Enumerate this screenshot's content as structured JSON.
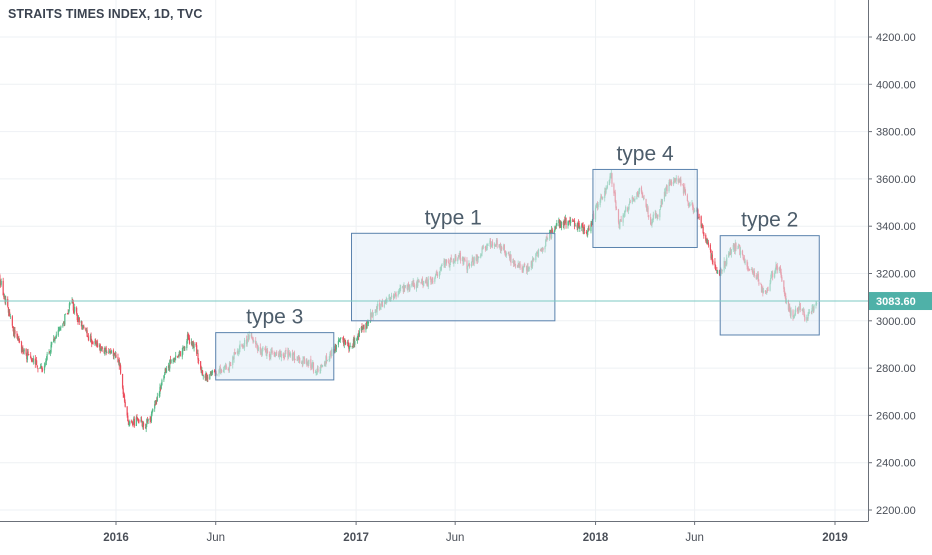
{
  "chart_data": {
    "type": "candlestick",
    "title": "STRAITS TIMES INDEX, 1D, TVC",
    "xlabel": "",
    "ylabel": "",
    "ylim": [
      2150,
      4350
    ],
    "grid": true,
    "y_ticks": [
      2200,
      2400,
      2600,
      2800,
      3000,
      3200,
      3400,
      3600,
      3800,
      4000,
      4200
    ],
    "y_tick_labels": [
      "2200.00",
      "2400.00",
      "2600.00",
      "2800.00",
      "3000.00",
      "3200.00",
      "3400.00",
      "3600.00",
      "3800.00",
      "4000.00",
      "4200.00"
    ],
    "x_ticks": [
      {
        "date": "2016-01-01",
        "label": "2016",
        "bold": true
      },
      {
        "date": "2016-06-01",
        "label": "Jun",
        "bold": false
      },
      {
        "date": "2017-01-01",
        "label": "2017",
        "bold": true
      },
      {
        "date": "2017-06-01",
        "label": "Jun",
        "bold": false
      },
      {
        "date": "2018-01-01",
        "label": "2018",
        "bold": true
      },
      {
        "date": "2018-06-01",
        "label": "Jun",
        "bold": false
      },
      {
        "date": "2019-01-01",
        "label": "2019",
        "bold": true
      }
    ],
    "x_range": [
      "2015-06-01",
      "2019-01-31"
    ],
    "last_price": {
      "value": 3083.6,
      "label": "3083.60"
    },
    "price_path": [
      [
        "2015-06-01",
        3320
      ],
      [
        "2015-06-10",
        3380
      ],
      [
        "2015-06-22",
        3310
      ],
      [
        "2015-07-02",
        3240
      ],
      [
        "2015-07-15",
        3100
      ],
      [
        "2015-07-28",
        2960
      ],
      [
        "2015-08-10",
        2880
      ],
      [
        "2015-08-20",
        2850
      ],
      [
        "2015-09-01",
        2820
      ],
      [
        "2015-09-10",
        2800
      ],
      [
        "2015-09-22",
        2880
      ],
      [
        "2015-10-05",
        2950
      ],
      [
        "2015-10-15",
        3010
      ],
      [
        "2015-10-25",
        3080
      ],
      [
        "2015-11-05",
        3000
      ],
      [
        "2015-11-20",
        2930
      ],
      [
        "2015-12-05",
        2890
      ],
      [
        "2015-12-20",
        2870
      ],
      [
        "2016-01-05",
        2840
      ],
      [
        "2016-01-12",
        2700
      ],
      [
        "2016-01-21",
        2560
      ],
      [
        "2016-02-05",
        2580
      ],
      [
        "2016-02-15",
        2560
      ],
      [
        "2016-02-25",
        2600
      ],
      [
        "2016-03-05",
        2690
      ],
      [
        "2016-03-15",
        2780
      ],
      [
        "2016-03-28",
        2850
      ],
      [
        "2016-04-08",
        2860
      ],
      [
        "2016-04-20",
        2930
      ],
      [
        "2016-05-02",
        2880
      ],
      [
        "2016-05-12",
        2760
      ],
      [
        "2016-05-25",
        2770
      ],
      [
        "2016-06-05",
        2790
      ],
      [
        "2016-06-20",
        2800
      ],
      [
        "2016-06-30",
        2860
      ],
      [
        "2016-07-12",
        2900
      ],
      [
        "2016-07-25",
        2930
      ],
      [
        "2016-08-05",
        2880
      ],
      [
        "2016-08-20",
        2860
      ],
      [
        "2016-09-05",
        2850
      ],
      [
        "2016-09-20",
        2860
      ],
      [
        "2016-10-05",
        2840
      ],
      [
        "2016-10-20",
        2820
      ],
      [
        "2016-11-02",
        2790
      ],
      [
        "2016-11-12",
        2820
      ],
      [
        "2016-11-25",
        2870
      ],
      [
        "2016-12-10",
        2930
      ],
      [
        "2016-12-22",
        2880
      ],
      [
        "2017-01-05",
        2940
      ],
      [
        "2017-01-18",
        3000
      ],
      [
        "2017-02-01",
        3050
      ],
      [
        "2017-02-15",
        3080
      ],
      [
        "2017-03-01",
        3110
      ],
      [
        "2017-03-15",
        3140
      ],
      [
        "2017-03-28",
        3150
      ],
      [
        "2017-04-10",
        3170
      ],
      [
        "2017-04-25",
        3160
      ],
      [
        "2017-05-10",
        3230
      ],
      [
        "2017-05-25",
        3250
      ],
      [
        "2017-06-08",
        3270
      ],
      [
        "2017-06-20",
        3230
      ],
      [
        "2017-07-05",
        3270
      ],
      [
        "2017-07-20",
        3320
      ],
      [
        "2017-08-01",
        3330
      ],
      [
        "2017-08-12",
        3310
      ],
      [
        "2017-08-25",
        3260
      ],
      [
        "2017-09-08",
        3230
      ],
      [
        "2017-09-20",
        3220
      ],
      [
        "2017-10-05",
        3280
      ],
      [
        "2017-10-20",
        3350
      ],
      [
        "2017-11-05",
        3410
      ],
      [
        "2017-11-20",
        3420
      ],
      [
        "2017-12-05",
        3400
      ],
      [
        "2017-12-20",
        3380
      ],
      [
        "2018-01-05",
        3500
      ],
      [
        "2018-01-18",
        3560
      ],
      [
        "2018-01-25",
        3610
      ],
      [
        "2018-02-06",
        3400
      ],
      [
        "2018-02-15",
        3460
      ],
      [
        "2018-02-28",
        3520
      ],
      [
        "2018-03-12",
        3560
      ],
      [
        "2018-03-25",
        3420
      ],
      [
        "2018-04-05",
        3450
      ],
      [
        "2018-04-20",
        3560
      ],
      [
        "2018-05-02",
        3610
      ],
      [
        "2018-05-12",
        3580
      ],
      [
        "2018-05-22",
        3500
      ],
      [
        "2018-06-05",
        3460
      ],
      [
        "2018-06-20",
        3330
      ],
      [
        "2018-07-02",
        3230
      ],
      [
        "2018-07-10",
        3200
      ],
      [
        "2018-07-22",
        3280
      ],
      [
        "2018-08-05",
        3320
      ],
      [
        "2018-08-20",
        3230
      ],
      [
        "2018-09-05",
        3180
      ],
      [
        "2018-09-15",
        3100
      ],
      [
        "2018-09-28",
        3200
      ],
      [
        "2018-10-08",
        3240
      ],
      [
        "2018-10-18",
        3080
      ],
      [
        "2018-10-28",
        3020
      ],
      [
        "2018-11-08",
        3060
      ],
      [
        "2018-11-18",
        3000
      ],
      [
        "2018-11-28",
        3060
      ],
      [
        "2018-12-05",
        3083
      ]
    ],
    "annotations": [
      {
        "label": "type 1",
        "box": {
          "x0": "2016-12-25",
          "x1": "2017-10-31",
          "y0": 3000,
          "y1": 3370
        }
      },
      {
        "label": "type 2",
        "box": {
          "x0": "2018-07-10",
          "x1": "2018-12-08",
          "y0": 2940,
          "y1": 3360
        }
      },
      {
        "label": "type 3",
        "box": {
          "x0": "2016-06-01",
          "x1": "2016-11-28",
          "y0": 2750,
          "y1": 2950
        }
      },
      {
        "label": "type 4",
        "box": {
          "x0": "2017-12-28",
          "x1": "2018-06-05",
          "y0": 3310,
          "y1": 3640
        }
      }
    ],
    "colors": {
      "up": "#53b987",
      "down": "#eb4d5c",
      "price_line": "#7ccac3",
      "price_label_bg": "#4fb1a8",
      "box_fill": "#e2edf8",
      "box_stroke": "#5a82ad",
      "grid": "#eef1f4",
      "axis_text": "#4a4f58",
      "annotation_text": "#4d5d6b"
    }
  }
}
